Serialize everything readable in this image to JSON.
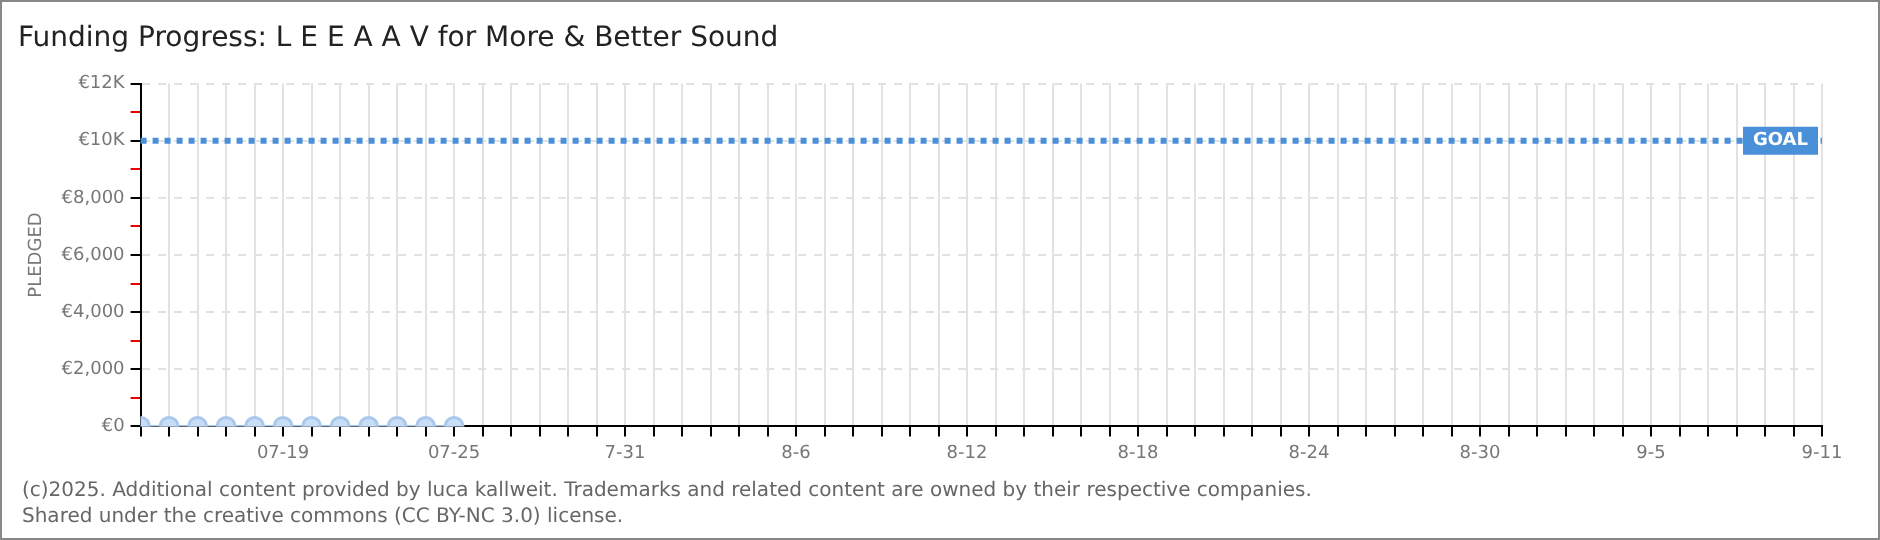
{
  "chart_data": {
    "type": "line",
    "title": "Funding Progress: L E E A A V for More & Better Sound",
    "ylabel": "PLEDGED",
    "x": [
      "--07-14",
      "--07-15",
      "--07-16",
      "--07-17",
      "--07-18",
      "--07-19",
      "--07-20",
      "--07-21",
      "--07-22",
      "--07-23",
      "--07-24",
      "--07-25"
    ],
    "series": [
      {
        "color": "#a9c8ec",
        "values": [
          0,
          0,
          0,
          0,
          0,
          0,
          0,
          0,
          0,
          0,
          0,
          0
        ]
      }
    ],
    "xlim": [
      "--07-14",
      "--09-11"
    ],
    "xticks": [
      {
        "value": "--07-14",
        "label": null
      },
      {
        "value": "--07-15",
        "label": null
      },
      {
        "value": "--07-16",
        "label": null
      },
      {
        "value": "--07-17",
        "label": null
      },
      {
        "value": "--07-18",
        "label": null
      },
      {
        "value": "--07-19",
        "label": "07-19"
      },
      {
        "value": "--07-20",
        "label": null
      },
      {
        "value": "--07-21",
        "label": null
      },
      {
        "value": "--07-22",
        "label": null
      },
      {
        "value": "--07-23",
        "label": null
      },
      {
        "value": "--07-24",
        "label": null
      },
      {
        "value": "--07-25",
        "label": "07-25"
      },
      {
        "value": "--07-26",
        "label": null
      },
      {
        "value": "--07-27",
        "label": null
      },
      {
        "value": "--07-28",
        "label": null
      },
      {
        "value": "--07-29",
        "label": null
      },
      {
        "value": "--07-30",
        "label": null
      },
      {
        "value": "--07-31",
        "label": "7-31"
      },
      {
        "value": "--08-01",
        "label": null
      },
      {
        "value": "--08-02",
        "label": null
      },
      {
        "value": "--08-03",
        "label": null
      },
      {
        "value": "--08-04",
        "label": null
      },
      {
        "value": "--08-05",
        "label": null
      },
      {
        "value": "--08-06",
        "label": "8-6"
      },
      {
        "value": "--08-07",
        "label": null
      },
      {
        "value": "--08-08",
        "label": null
      },
      {
        "value": "--08-09",
        "label": null
      },
      {
        "value": "--08-10",
        "label": null
      },
      {
        "value": "--08-11",
        "label": null
      },
      {
        "value": "--08-12",
        "label": "8-12"
      },
      {
        "value": "--08-13",
        "label": null
      },
      {
        "value": "--08-14",
        "label": null
      },
      {
        "value": "--08-15",
        "label": null
      },
      {
        "value": "--08-16",
        "label": null
      },
      {
        "value": "--08-17",
        "label": null
      },
      {
        "value": "--08-18",
        "label": "8-18"
      },
      {
        "value": "--08-19",
        "label": null
      },
      {
        "value": "--08-20",
        "label": null
      },
      {
        "value": "--08-21",
        "label": null
      },
      {
        "value": "--08-22",
        "label": null
      },
      {
        "value": "--08-23",
        "label": null
      },
      {
        "value": "--08-24",
        "label": "8-24"
      },
      {
        "value": "--08-25",
        "label": null
      },
      {
        "value": "--08-26",
        "label": null
      },
      {
        "value": "--08-27",
        "label": null
      },
      {
        "value": "--08-28",
        "label": null
      },
      {
        "value": "--08-29",
        "label": null
      },
      {
        "value": "--08-30",
        "label": "8-30"
      },
      {
        "value": "--08-31",
        "label": null
      },
      {
        "value": "--09-01",
        "label": null
      },
      {
        "value": "--09-02",
        "label": null
      },
      {
        "value": "--09-03",
        "label": null
      },
      {
        "value": "--09-04",
        "label": null
      },
      {
        "value": "--09-05",
        "label": "9-5"
      },
      {
        "value": "--09-06",
        "label": null
      },
      {
        "value": "--09-07",
        "label": null
      },
      {
        "value": "--09-08",
        "label": null
      },
      {
        "value": "--09-09",
        "label": null
      },
      {
        "value": "--09-10",
        "label": null
      },
      {
        "value": "--09-11",
        "label": "9-11"
      }
    ],
    "ylim": [
      0,
      12000
    ],
    "yticks": [
      {
        "value": 0,
        "label": "€0"
      },
      {
        "value": 1000,
        "label": null
      },
      {
        "value": 2000,
        "label": "€2,000"
      },
      {
        "value": 3000,
        "label": null
      },
      {
        "value": 4000,
        "label": "€4,000"
      },
      {
        "value": 5000,
        "label": null
      },
      {
        "value": 6000,
        "label": "€6,000"
      },
      {
        "value": 7000,
        "label": null
      },
      {
        "value": 8000,
        "label": "€8,000"
      },
      {
        "value": 9000,
        "label": null
      },
      {
        "value": 10000,
        "label": "€10K"
      },
      {
        "value": 11000,
        "label": null
      },
      {
        "value": 12000,
        "label": "€12K"
      }
    ],
    "ref_lines": [
      {
        "axis": "y",
        "value": 10000,
        "label": "GOAL",
        "color": "#4a90d9",
        "line_style": "dotted"
      }
    ],
    "grid": true,
    "legend": false,
    "marker": "circle",
    "line_style": "solid",
    "annotations": [
      "(c)2025. Additional content provided by luca kallweit. Trademarks and related content are owned by their respective companies.",
      "Shared under the creative commons (CC BY-NC 3.0) license."
    ]
  }
}
